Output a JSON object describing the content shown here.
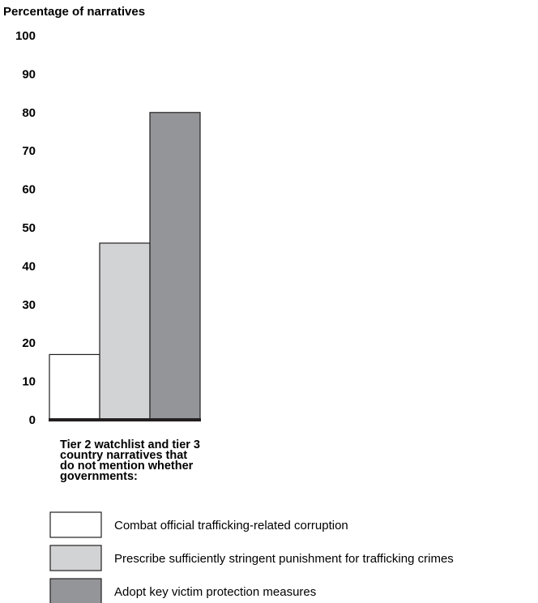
{
  "chart_data": {
    "type": "bar",
    "ylabel": "Percentage of narratives",
    "ylim": [
      0,
      100
    ],
    "yticks": [
      0,
      10,
      20,
      30,
      40,
      50,
      60,
      70,
      80,
      90,
      100
    ],
    "xlabel_lines": [
      "Tier 2 watchlist and tier 3",
      "country narratives that",
      "do not mention whether",
      "governments:"
    ],
    "series": [
      {
        "name": "Combat official trafficking-related corruption",
        "value": 17,
        "color": "#ffffff"
      },
      {
        "name": "Prescribe sufficiently stringent punishment for trafficking crimes",
        "value": 46,
        "color": "#d1d3d4"
      },
      {
        "name": "Adopt key victim protection measures",
        "value": 80,
        "color": "#939598"
      }
    ],
    "grid": false,
    "legend_position": "bottom"
  }
}
